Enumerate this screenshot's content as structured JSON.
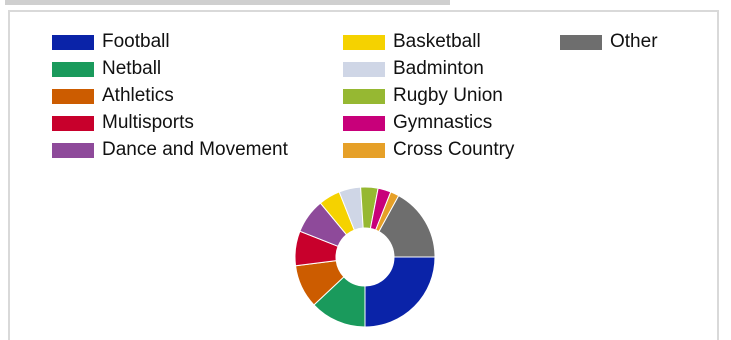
{
  "chart_data": {
    "type": "pie",
    "style": "donut",
    "legend_placement": "top",
    "categories": [
      "Football",
      "Netball",
      "Athletics",
      "Multisports",
      "Dance and Movement",
      "Basketball",
      "Badminton",
      "Rugby Union",
      "Gymnastics",
      "Cross Country",
      "Other"
    ],
    "legend_order": [
      "Football",
      "Basketball",
      "Other",
      "Netball",
      "Badminton",
      "Athletics",
      "Rugby Union",
      "Multisports",
      "Gymnastics",
      "Dance and Movement",
      "Cross Country"
    ],
    "values": [
      25,
      13,
      10,
      8,
      8,
      5,
      5,
      4,
      3,
      2,
      17
    ],
    "colors": [
      "#0a23a8",
      "#1a9a5c",
      "#cc5c00",
      "#c8002c",
      "#8e4a9a",
      "#f5d200",
      "#cfd6e6",
      "#96b832",
      "#c8007a",
      "#e6a028",
      "#6e6e6e"
    ]
  }
}
